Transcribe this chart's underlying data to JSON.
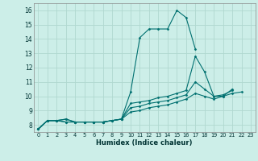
{
  "title": "",
  "xlabel": "Humidex (Indice chaleur)",
  "ylabel": "",
  "background_color": "#cceee8",
  "grid_color": "#b0d8d0",
  "line_color": "#007070",
  "xlim": [
    -0.5,
    23.5
  ],
  "ylim": [
    7.5,
    16.5
  ],
  "yticks": [
    8,
    9,
    10,
    11,
    12,
    13,
    14,
    15,
    16
  ],
  "xticks": [
    0,
    1,
    2,
    3,
    4,
    5,
    6,
    7,
    8,
    9,
    10,
    11,
    12,
    13,
    14,
    15,
    16,
    17,
    18,
    19,
    20,
    21,
    22,
    23
  ],
  "series": [
    {
      "x": [
        0,
        1,
        2,
        3,
        4,
        5,
        6,
        7,
        8,
        9,
        10,
        11,
        12,
        13,
        14,
        15,
        16,
        17
      ],
      "y": [
        7.7,
        8.3,
        8.3,
        8.4,
        8.2,
        8.2,
        8.2,
        8.2,
        8.3,
        8.4,
        10.3,
        14.1,
        14.7,
        14.7,
        14.7,
        16.0,
        15.5,
        13.3
      ]
    },
    {
      "x": [
        0,
        1,
        2,
        3,
        4,
        5,
        6,
        7,
        8,
        9,
        10,
        11,
        12,
        13,
        14,
        15,
        16,
        17,
        18,
        19,
        20,
        21
      ],
      "y": [
        7.7,
        8.3,
        8.3,
        8.4,
        8.2,
        8.2,
        8.2,
        8.2,
        8.3,
        8.4,
        9.5,
        9.6,
        9.7,
        9.9,
        10.0,
        10.2,
        10.4,
        12.8,
        11.7,
        10.0,
        10.0,
        10.5
      ]
    },
    {
      "x": [
        0,
        1,
        2,
        3,
        4,
        5,
        6,
        7,
        8,
        9,
        10,
        11,
        12,
        13,
        14,
        15,
        16,
        17,
        18,
        19,
        20,
        21
      ],
      "y": [
        7.7,
        8.3,
        8.3,
        8.2,
        8.2,
        8.2,
        8.2,
        8.2,
        8.3,
        8.4,
        9.2,
        9.3,
        9.5,
        9.6,
        9.7,
        9.9,
        10.1,
        11.0,
        10.5,
        10.0,
        10.1,
        10.4
      ]
    },
    {
      "x": [
        0,
        1,
        2,
        3,
        4,
        5,
        6,
        7,
        8,
        9,
        10,
        11,
        12,
        13,
        14,
        15,
        16,
        17,
        18,
        19,
        20,
        21,
        22
      ],
      "y": [
        7.7,
        8.3,
        8.3,
        8.2,
        8.2,
        8.2,
        8.2,
        8.2,
        8.3,
        8.4,
        8.9,
        9.0,
        9.2,
        9.3,
        9.4,
        9.6,
        9.8,
        10.2,
        10.0,
        9.8,
        10.0,
        10.2,
        10.3
      ]
    }
  ]
}
